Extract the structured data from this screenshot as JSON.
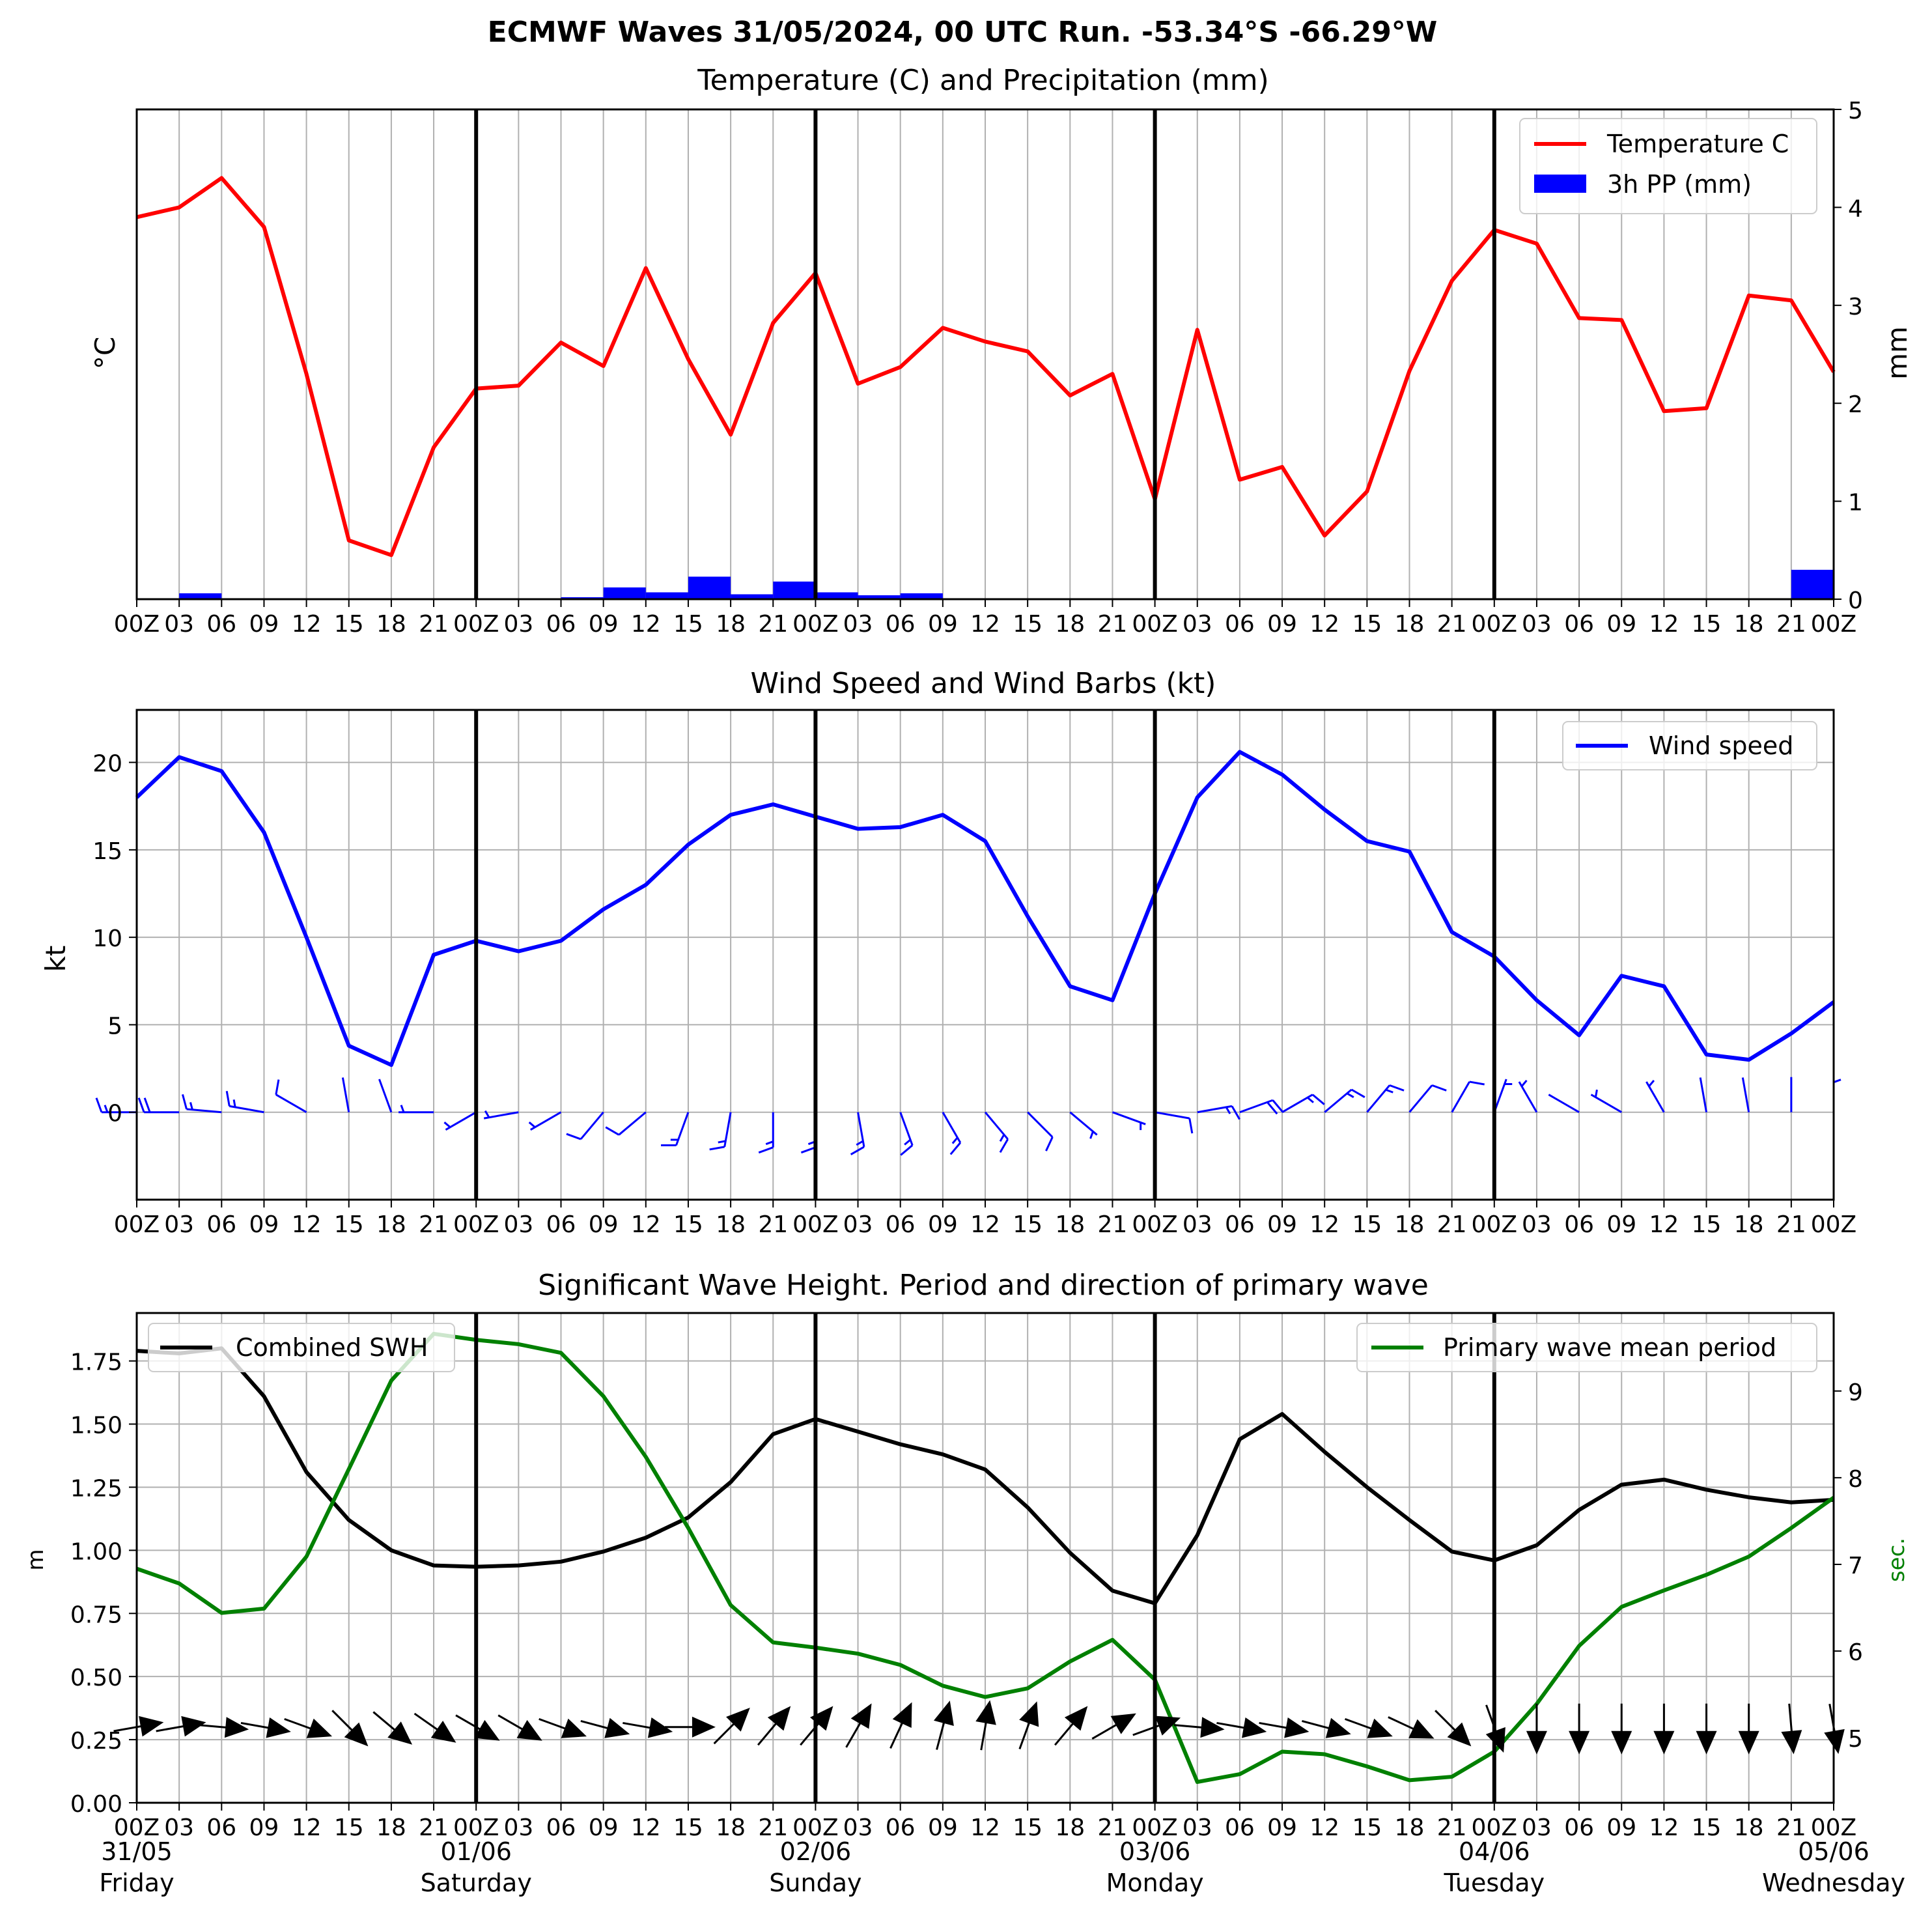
{
  "suptitle": "ECMWF Waves 31/05/2024, 00 UTC Run. -53.34°S -66.29°W",
  "colors": {
    "temperature": "#ff0000",
    "precip": "#0000ff",
    "wind": "#0000ff",
    "swh": "#000000",
    "period": "#008000",
    "grid": "#b0b0b0"
  },
  "x_tick_labels": [
    "00Z",
    "03",
    "06",
    "09",
    "12",
    "15",
    "18",
    "21",
    "00Z",
    "03",
    "06",
    "09",
    "12",
    "15",
    "18",
    "21",
    "00Z",
    "03",
    "06",
    "09",
    "12",
    "15",
    "18",
    "21",
    "00Z",
    "03",
    "06",
    "09",
    "12",
    "15",
    "18",
    "21",
    "00Z",
    "03",
    "06",
    "09",
    "12",
    "15",
    "18",
    "21",
    "00Z"
  ],
  "day_labels": [
    {
      "date": "31/05",
      "day": "Friday"
    },
    {
      "date": "01/06",
      "day": "Saturday"
    },
    {
      "date": "02/06",
      "day": "Sunday"
    },
    {
      "date": "03/06",
      "day": "Monday"
    },
    {
      "date": "04/06",
      "day": "Tuesday"
    },
    {
      "date": "05/06",
      "day": "Wednesday"
    }
  ],
  "chart_data": [
    {
      "type": "line",
      "title": "Temperature (C) and Precipitation (mm)",
      "ylabel": "°C",
      "ylabel_right": "mm",
      "x_step_hours": 3,
      "xlim": [
        0,
        40
      ],
      "ylim_right": [
        0,
        5
      ],
      "right_ticks": [
        "0",
        "1",
        "2",
        "3",
        "4",
        "5"
      ],
      "legend": {
        "placement": "top-right",
        "entries": [
          "Temperature C",
          "3h PP (mm)"
        ]
      },
      "series": [
        {
          "name": "Temperature C",
          "kind": "line",
          "values": [
            4.1,
            4.2,
            4.5,
            4.0,
            2.5,
            0.8,
            0.65,
            1.75,
            2.35,
            2.38,
            2.82,
            2.58,
            3.58,
            2.65,
            1.88,
            3.02,
            3.53,
            2.4,
            2.57,
            2.97,
            2.83,
            2.73,
            2.28,
            2.5,
            1.22,
            2.95,
            1.42,
            1.55,
            0.85,
            1.3,
            2.53,
            3.45,
            3.97,
            3.83,
            3.07,
            3.05,
            2.12,
            2.15,
            3.3,
            3.25,
            2.52
          ]
        },
        {
          "name": "3h PP (mm)",
          "kind": "bar",
          "values": [
            0,
            0.06,
            0,
            0,
            0,
            0,
            0,
            0,
            0,
            0,
            0.02,
            0.12,
            0.07,
            0.23,
            0.05,
            0.18,
            0.07,
            0.04,
            0.06,
            0,
            0,
            0,
            0,
            0,
            0,
            0,
            0,
            0,
            0,
            0,
            0,
            0,
            0,
            0,
            0,
            0,
            0,
            0,
            0,
            0.3
          ]
        }
      ]
    },
    {
      "type": "line",
      "title": "Wind Speed and Wind Barbs (kt)",
      "ylabel": "kt",
      "ylim": [
        -5,
        23
      ],
      "y_ticks": [
        "0",
        "5",
        "10",
        "15",
        "20"
      ],
      "legend": {
        "placement": "top-right",
        "entries": [
          "Wind speed"
        ]
      },
      "series": [
        {
          "name": "Wind speed",
          "values": [
            18.0,
            20.3,
            19.5,
            16.0,
            10.0,
            3.8,
            2.7,
            9.0,
            9.8,
            9.2,
            9.8,
            11.6,
            13.0,
            15.3,
            17.0,
            17.6,
            16.9,
            16.2,
            16.3,
            17.0,
            15.5,
            11.2,
            7.2,
            6.4,
            12.5,
            18.0,
            20.6,
            19.3,
            17.3,
            15.5,
            14.9,
            10.3,
            8.9,
            6.4,
            4.4,
            7.8,
            7.2,
            3.3,
            3.0,
            4.5,
            6.3
          ]
        }
      ],
      "barb_from_direction_deg": [
        270,
        270,
        275,
        280,
        300,
        350,
        340,
        270,
        240,
        260,
        240,
        220,
        230,
        200,
        190,
        180,
        180,
        170,
        160,
        150,
        140,
        135,
        130,
        110,
        100,
        80,
        70,
        60,
        50,
        40,
        40,
        30,
        20,
        330,
        300,
        300,
        330,
        350,
        350,
        0,
        0
      ]
    },
    {
      "type": "line",
      "title": "Significant Wave Height. Period and direction of primary wave",
      "ylabel": "m",
      "ylabel_right": "sec.",
      "ylim": [
        0,
        1.94
      ],
      "y_ticks": [
        "0.00",
        "0.25",
        "0.50",
        "0.75",
        "1.00",
        "1.25",
        "1.50",
        "1.75"
      ],
      "ylim_right": [
        4.25,
        9.9
      ],
      "right_ticks": [
        "5",
        "6",
        "7",
        "8",
        "9"
      ],
      "legend": {
        "placement": "top-left and top-right",
        "entries": [
          "Combined SWH",
          "Primary wave mean period"
        ]
      },
      "series": [
        {
          "name": "Combined SWH",
          "values": [
            1.79,
            1.78,
            1.8,
            1.61,
            1.31,
            1.12,
            1.0,
            0.94,
            0.935,
            0.94,
            0.955,
            0.995,
            1.05,
            1.13,
            1.27,
            1.46,
            1.52,
            1.47,
            1.42,
            1.38,
            1.32,
            1.17,
            0.99,
            0.84,
            0.79,
            1.06,
            1.44,
            1.54,
            1.39,
            1.25,
            1.12,
            0.995,
            0.96,
            1.02,
            1.16,
            1.26,
            1.28,
            1.24,
            1.21,
            1.19,
            1.2
          ]
        },
        {
          "name": "Primary wave mean period",
          "values": [
            6.95,
            6.78,
            6.44,
            6.49,
            7.09,
            8.1,
            9.12,
            9.66,
            9.59,
            9.54,
            9.44,
            8.94,
            8.24,
            7.42,
            6.53,
            6.1,
            6.04,
            5.97,
            5.84,
            5.6,
            5.47,
            5.57,
            5.88,
            6.13,
            5.67,
            4.49,
            4.58,
            4.84,
            4.81,
            4.67,
            4.51,
            4.55,
            4.84,
            5.39,
            6.06,
            6.51,
            6.7,
            6.88,
            7.09,
            7.42,
            7.77
          ]
        }
      ],
      "wave_direction_to_deg": [
        80,
        80,
        95,
        100,
        110,
        135,
        130,
        125,
        120,
        120,
        110,
        105,
        100,
        90,
        45,
        40,
        40,
        30,
        25,
        15,
        10,
        20,
        40,
        60,
        70,
        95,
        100,
        100,
        105,
        110,
        115,
        135,
        160,
        180,
        180,
        180,
        180,
        180,
        180,
        175,
        170
      ]
    }
  ]
}
